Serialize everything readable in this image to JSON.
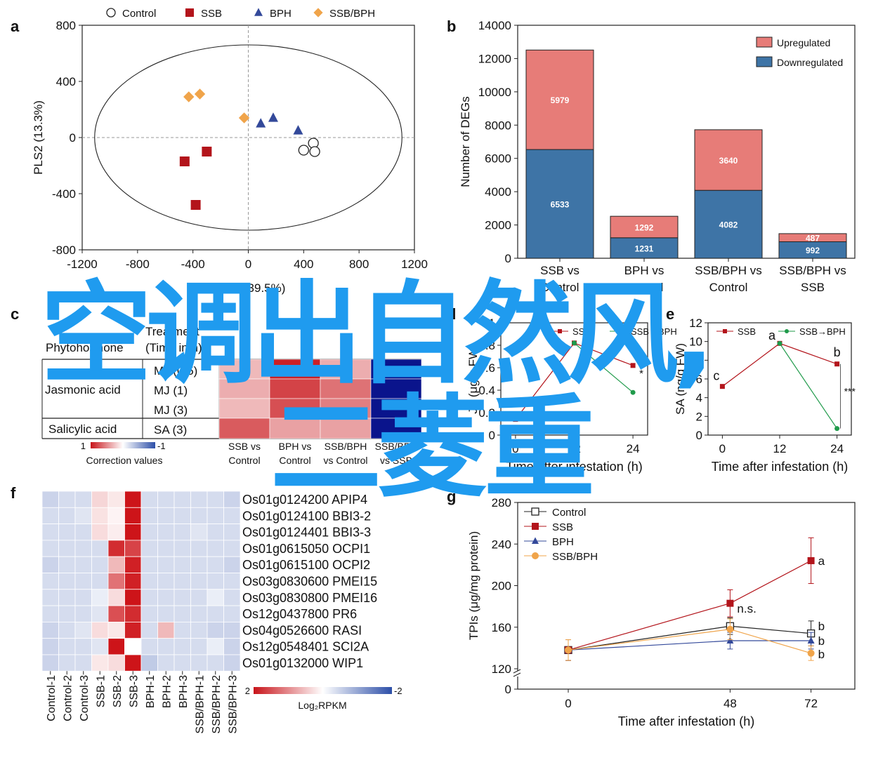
{
  "colors": {
    "control": "#222222",
    "ssb": "#b3141b",
    "bph": "#33499a",
    "ssbbph": "#f0a44a",
    "upregulated": "#e77c78",
    "downregulated": "#3e74a6",
    "overlay": "#1f9bef"
  },
  "overlay": {
    "line1": "空调出自然风,",
    "line2": "二菱重"
  },
  "chart_data": [
    {
      "id": "a",
      "panel_letter": "a",
      "type": "scatter",
      "xlabel": "PLS1 (39.5%)",
      "ylabel": "PLS2 (13.3%)",
      "xlim": [
        -1200,
        1200
      ],
      "ylim": [
        -800,
        800
      ],
      "xticks": [
        -1200,
        -800,
        -400,
        0,
        400,
        800,
        1200
      ],
      "yticks": [
        800,
        400,
        0,
        -400,
        -800
      ],
      "legend": [
        "Control",
        "SSB",
        "BPH",
        "SSB/BPH"
      ],
      "series": [
        {
          "name": "Control",
          "marker": "circle-open",
          "points": [
            [
              470,
              -40
            ],
            [
              400,
              -90
            ],
            [
              480,
              -100
            ]
          ]
        },
        {
          "name": "SSB",
          "marker": "square",
          "points": [
            [
              -300,
              -100
            ],
            [
              -460,
              -170
            ],
            [
              -380,
              -480
            ]
          ]
        },
        {
          "name": "BPH",
          "marker": "triangle",
          "points": [
            [
              90,
              100
            ],
            [
              180,
              140
            ],
            [
              360,
              50
            ]
          ]
        },
        {
          "name": "SSB/BPH",
          "marker": "diamond",
          "points": [
            [
              -430,
              290
            ],
            [
              -350,
              310
            ],
            [
              -30,
              140
            ]
          ]
        }
      ],
      "ellipse": {
        "cx": 0,
        "cy": 0,
        "rx": 1110,
        "ry": 660
      }
    },
    {
      "id": "b",
      "panel_letter": "b",
      "type": "bar",
      "stacked": true,
      "ylabel": "Number of DEGs",
      "ylim": [
        0,
        14000
      ],
      "yticks": [
        0,
        2000,
        4000,
        6000,
        8000,
        10000,
        12000,
        14000
      ],
      "categories": [
        [
          "SSB vs",
          "Control"
        ],
        [
          "BPH vs",
          "Control"
        ],
        [
          "SSB/BPH vs",
          "Control"
        ],
        [
          "SSB/BPH vs",
          "SSB"
        ]
      ],
      "series": [
        {
          "name": "Downregulated",
          "values": [
            6533,
            1231,
            4082,
            992
          ]
        },
        {
          "name": "Upregulated",
          "values": [
            5979,
            1292,
            3640,
            487
          ]
        }
      ],
      "legend_order": [
        "Upregulated",
        "Downregulated"
      ],
      "legend_position": "top-right"
    },
    {
      "id": "c",
      "panel_letter": "c",
      "type": "heatmap",
      "header_col1": [
        "Phytohormone"
      ],
      "header_col2": [
        "Treatment",
        "(Time in h)"
      ],
      "groups": [
        {
          "name": "Jasmonic acid",
          "rows": [
            "MJ (0.5)",
            "MJ (1)",
            "MJ (3)"
          ]
        },
        {
          "name": "Salicylic acid",
          "rows": [
            "SA (3)"
          ]
        }
      ],
      "columns": [
        [
          "SSB vs",
          "Control"
        ],
        [
          "BPH vs",
          "Control"
        ],
        [
          "SSB/BPH",
          "vs Control"
        ],
        [
          "SSB/BPH",
          "vs SSB"
        ]
      ],
      "values": [
        [
          0.3,
          0.95,
          0.35,
          -1
        ],
        [
          0.35,
          0.8,
          0.6,
          -1
        ],
        [
          0.3,
          0.75,
          0.55,
          -1
        ],
        [
          0.7,
          0.4,
          0.4,
          -1
        ]
      ],
      "scale_labels": [
        "1",
        "-1"
      ],
      "scale_title": "Correction values"
    },
    {
      "id": "d",
      "panel_letter": "d",
      "type": "line",
      "xlabel": "Time after infestation (h)",
      "ylabel": "JA (μg/g FW)",
      "xlim": [
        -3,
        27
      ],
      "ylim": [
        0,
        1.0
      ],
      "xticks": [
        0,
        12,
        24
      ],
      "yticks": [
        0,
        0.2,
        0.4,
        0.6,
        0.8,
        1.0
      ],
      "series": [
        {
          "name": "SSB",
          "x": [
            0,
            12,
            24
          ],
          "y": [
            0.14,
            0.82,
            0.62
          ]
        },
        {
          "name": "SSB→BPH",
          "x": [
            12,
            24
          ],
          "y": [
            0.82,
            0.38
          ]
        }
      ],
      "annotations": [
        "a",
        "b",
        "*"
      ]
    },
    {
      "id": "e",
      "panel_letter": "e",
      "type": "line",
      "xlabel": "Time after infestation (h)",
      "ylabel": "SA (ng/g FW)",
      "xlim": [
        -3,
        27
      ],
      "ylim": [
        0,
        12
      ],
      "xticks": [
        0,
        12,
        24
      ],
      "yticks": [
        0,
        2,
        4,
        6,
        8,
        10,
        12
      ],
      "series": [
        {
          "name": "SSB",
          "x": [
            0,
            12,
            24
          ],
          "y": [
            5.2,
            9.8,
            7.6
          ]
        },
        {
          "name": "SSB→BPH",
          "x": [
            12,
            24
          ],
          "y": [
            9.8,
            0.7
          ]
        }
      ],
      "annotations": [
        "c",
        "a",
        "b",
        "***"
      ]
    },
    {
      "id": "f",
      "panel_letter": "f",
      "type": "heatmap",
      "rows": [
        "Os01g0124200 APIP4",
        "Os01g0124100 BBI3-2",
        "Os01g0124401 BBI3-3",
        "Os01g0615050 OCPI1",
        "Os01g0615100 OCPI2",
        "Os03g0830600 PMEI15",
        "Os03g0830800 PMEI16",
        "Os12g0437800 PR6",
        "Os04g0526600 RASI",
        "Os12g0548401 SCI2A",
        "Os01g0132000 WIP1"
      ],
      "columns": [
        "Control-1",
        "Control-2",
        "Control-3",
        "SSB-1",
        "SSB-2",
        "SSB-3",
        "BPH-1",
        "BPH-2",
        "BPH-3",
        "SSB/BPH-1",
        "SSB/BPH-2",
        "SSB/BPH-3"
      ],
      "values": [
        [
          -0.5,
          -0.4,
          -0.4,
          0.35,
          0.2,
          2.0,
          -0.4,
          -0.4,
          -0.4,
          -0.4,
          -0.4,
          -0.5
        ],
        [
          -0.4,
          -0.4,
          -0.3,
          0.25,
          0.1,
          2.0,
          -0.4,
          -0.4,
          -0.4,
          -0.4,
          -0.4,
          -0.4
        ],
        [
          -0.4,
          -0.4,
          -0.4,
          0.3,
          0.15,
          2.0,
          -0.4,
          -0.4,
          -0.4,
          -0.3,
          -0.4,
          -0.4
        ],
        [
          -0.4,
          -0.4,
          -0.4,
          -0.4,
          1.8,
          1.6,
          -0.4,
          -0.4,
          -0.4,
          -0.4,
          -0.4,
          -0.4
        ],
        [
          -0.5,
          -0.4,
          -0.4,
          -0.4,
          0.6,
          1.9,
          -0.4,
          -0.4,
          -0.4,
          -0.4,
          -0.4,
          -0.5
        ],
        [
          -0.4,
          -0.4,
          -0.4,
          -0.4,
          1.2,
          1.9,
          -0.4,
          -0.4,
          -0.4,
          -0.4,
          -0.4,
          -0.4
        ],
        [
          -0.4,
          -0.4,
          -0.4,
          -0.2,
          0.3,
          2.0,
          -0.4,
          -0.4,
          -0.4,
          -0.4,
          -0.2,
          -0.4
        ],
        [
          -0.4,
          -0.4,
          -0.4,
          -0.3,
          1.5,
          1.8,
          -0.4,
          -0.4,
          -0.4,
          -0.4,
          -0.4,
          -0.4
        ],
        [
          -0.5,
          -0.4,
          -0.3,
          0.3,
          0.2,
          1.9,
          -0.4,
          0.6,
          -0.4,
          -0.4,
          -0.5,
          -0.5
        ],
        [
          -0.5,
          -0.4,
          -0.4,
          -0.3,
          2.0,
          0.0,
          -0.4,
          -0.4,
          -0.4,
          -0.4,
          -0.2,
          -0.5
        ],
        [
          -0.5,
          -0.4,
          -0.4,
          0.2,
          0.3,
          2.0,
          -0.6,
          -0.4,
          -0.4,
          -0.4,
          -0.4,
          -0.5
        ]
      ],
      "scale_labels": [
        "2",
        "-2"
      ],
      "scale_title": "Log₂RPKM"
    },
    {
      "id": "g",
      "panel_letter": "g",
      "type": "line",
      "xlabel": "Time after infestation (h)",
      "ylabel": "TPIs (μg/mg protein)",
      "xlim": [
        -15,
        85
      ],
      "ylim": [
        120,
        280
      ],
      "xticks": [
        0,
        48,
        72
      ],
      "yticks": [
        120,
        160,
        200,
        240,
        280
      ],
      "axis_break_label": "0",
      "series": [
        {
          "name": "Control",
          "x": [
            0,
            48,
            72
          ],
          "y": [
            138,
            161,
            154
          ],
          "err": [
            10,
            8,
            12
          ]
        },
        {
          "name": "SSB",
          "x": [
            0,
            48,
            72
          ],
          "y": [
            138,
            183,
            224
          ],
          "err": [
            10,
            13,
            22
          ]
        },
        {
          "name": "BPH",
          "x": [
            0,
            48,
            72
          ],
          "y": [
            138,
            147,
            147
          ],
          "err": [
            10,
            8,
            8
          ]
        },
        {
          "name": "SSB/BPH",
          "x": [
            0,
            48,
            72
          ],
          "y": [
            138,
            158,
            135
          ],
          "err": [
            10,
            10,
            7
          ]
        }
      ],
      "annotations": [
        "n.s.",
        "a",
        "b",
        "b",
        "b"
      ]
    }
  ]
}
